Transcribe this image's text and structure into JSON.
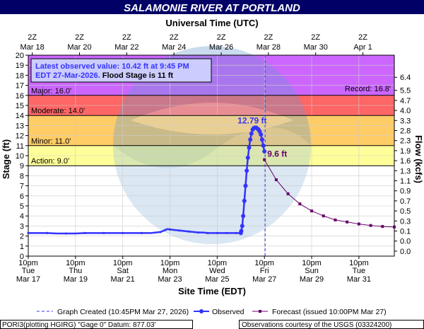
{
  "title": "SALAMONIE RIVER AT PORTLAND",
  "top_axis_title": "Universal Time (UTC)",
  "bottom_axis_title": "Site Time (EDT)",
  "left_axis_title": "Stage (ft)",
  "right_axis_title": "Flow (kcfs)",
  "top_ticks": [
    {
      "hour": "2Z",
      "date": "Mar 18"
    },
    {
      "hour": "2Z",
      "date": "Mar 20"
    },
    {
      "hour": "2Z",
      "date": "Mar 22"
    },
    {
      "hour": "2Z",
      "date": "Mar 24"
    },
    {
      "hour": "2Z",
      "date": "Mar 26"
    },
    {
      "hour": "2Z",
      "date": "Mar 28"
    },
    {
      "hour": "2Z",
      "date": "Mar 30"
    },
    {
      "hour": "2Z",
      "date": "Apr  1"
    }
  ],
  "bottom_ticks": [
    {
      "time": "10pm",
      "day": "Tue",
      "date": "Mar 17"
    },
    {
      "time": "10pm",
      "day": "Thu",
      "date": "Mar 19"
    },
    {
      "time": "10pm",
      "day": "Sat",
      "date": "Mar 21"
    },
    {
      "time": "10pm",
      "day": "Mon",
      "date": "Mar 23"
    },
    {
      "time": "10pm",
      "day": "Wed",
      "date": "Mar 25"
    },
    {
      "time": "10pm",
      "day": "Fri",
      "date": "Mar 27"
    },
    {
      "time": "10pm",
      "day": "Sun",
      "date": "Mar 29"
    },
    {
      "time": "10pm",
      "day": "Tue",
      "date": "Mar 31"
    }
  ],
  "latest_box": {
    "line1": "Latest observed value: 10.42 ft at 9:45 PM",
    "line2a": "EDT 27-Mar-2026.",
    "line2b": " Flood Stage is 11 ft"
  },
  "flood_categories": [
    {
      "name": "Action",
      "label": "Action: 9.0'",
      "stage": 9.0,
      "color": "#ffff99"
    },
    {
      "name": "Minor",
      "label": "Minor: 11.0'",
      "stage": 11.0,
      "color": "#ffcc66"
    },
    {
      "name": "Moderate",
      "label": "Moderate: 14.0'",
      "stage": 14.0,
      "color": "#ff6666"
    },
    {
      "name": "Major",
      "label": "Major: 16.0'",
      "stage": 16.0,
      "color": "#cc66ff"
    }
  ],
  "record_label": "Record: 16.8'",
  "peak_label": "12.79 ft",
  "forecast_label": "9.6 ft",
  "legend": {
    "graph_created": "Graph Created (10:45PM Mar 27, 2026)",
    "observed": "Observed",
    "forecast": "Forecast (issued 10:00PM Mar 27)"
  },
  "footer_left": "PORI3(plotting HGIRG) \"Gage 0\" Datum: 877.03'",
  "footer_right": "Observations courtesy of the USGS (03324200)",
  "colors": {
    "observed": "#3333ff",
    "forecast": "#660066",
    "title_bar": "#000066",
    "box_text": "#3333ff"
  },
  "chart_data": {
    "type": "line",
    "x_unit": "days since 10pm EDT Mar 17, 2026",
    "xlim": [
      0,
      15.5
    ],
    "ylim": [
      0,
      20
    ],
    "y_ticks": [
      0,
      1,
      2,
      3,
      4,
      5,
      6,
      7,
      8,
      9,
      10,
      11,
      12,
      13,
      14,
      15,
      16,
      17,
      18,
      19,
      20
    ],
    "flow_ticks": [
      {
        "stage": 17.8,
        "flow": "6.4"
      },
      {
        "stage": 16.5,
        "flow": "5.5"
      },
      {
        "stage": 15.5,
        "flow": "4.7"
      },
      {
        "stage": 14.5,
        "flow": "4.0"
      },
      {
        "stage": 13.5,
        "flow": "3.3"
      },
      {
        "stage": 12.5,
        "flow": "2.8"
      },
      {
        "stage": 11.5,
        "flow": "2.3"
      },
      {
        "stage": 10.5,
        "flow": "1.9"
      },
      {
        "stage": 9.5,
        "flow": "1.6"
      },
      {
        "stage": 8.5,
        "flow": "1.3"
      },
      {
        "stage": 7.5,
        "flow": "1.1"
      },
      {
        "stage": 6.5,
        "flow": "0.9"
      },
      {
        "stage": 5.5,
        "flow": "0.7"
      },
      {
        "stage": 4.5,
        "flow": "0.5"
      },
      {
        "stage": 3.5,
        "flow": "0.3"
      },
      {
        "stage": 2.5,
        "flow": "0.1"
      },
      {
        "stage": 1.5,
        "flow": "0.0"
      },
      {
        "stage": 0.5,
        "flow": "0.0"
      }
    ],
    "created_x": 10.03,
    "series": [
      {
        "name": "Observed",
        "type": "observed",
        "x": [
          0,
          0.4,
          0.8,
          1.2,
          1.6,
          2.0,
          2.4,
          2.8,
          3.2,
          3.6,
          4.0,
          4.4,
          4.8,
          5.2,
          5.6,
          5.7,
          5.8,
          5.9,
          6.0,
          6.2,
          6.4,
          6.6,
          6.8,
          7.0,
          7.2,
          7.4,
          7.6,
          7.8,
          8.0,
          8.2,
          8.4,
          8.6,
          8.8,
          9.0,
          9.02,
          9.06,
          9.1,
          9.15,
          9.2,
          9.25,
          9.3,
          9.35,
          9.4,
          9.45,
          9.5,
          9.55,
          9.6,
          9.65,
          9.7,
          9.75,
          9.8,
          9.85,
          9.9,
          9.95,
          10.0
        ],
        "y": [
          2.3,
          2.3,
          2.3,
          2.25,
          2.25,
          2.25,
          2.3,
          2.3,
          2.3,
          2.3,
          2.3,
          2.3,
          2.3,
          2.3,
          2.4,
          2.5,
          2.6,
          2.7,
          2.65,
          2.6,
          2.55,
          2.5,
          2.45,
          2.4,
          2.35,
          2.35,
          2.3,
          2.3,
          2.3,
          2.3,
          2.3,
          2.3,
          2.3,
          2.3,
          2.5,
          3.0,
          4.0,
          5.5,
          7.0,
          8.5,
          9.8,
          10.8,
          11.6,
          12.2,
          12.6,
          12.75,
          12.79,
          12.78,
          12.7,
          12.6,
          12.4,
          12.1,
          11.6,
          11.0,
          10.42
        ]
      },
      {
        "name": "Forecast",
        "type": "forecast",
        "x": [
          10.0,
          10.5,
          11.0,
          11.5,
          12.0,
          12.5,
          13.0,
          13.5,
          14.0,
          14.5,
          15.0,
          15.5
        ],
        "y": [
          9.6,
          7.6,
          6.2,
          5.2,
          4.5,
          4.0,
          3.6,
          3.4,
          3.2,
          3.05,
          2.95,
          2.9
        ]
      }
    ]
  }
}
